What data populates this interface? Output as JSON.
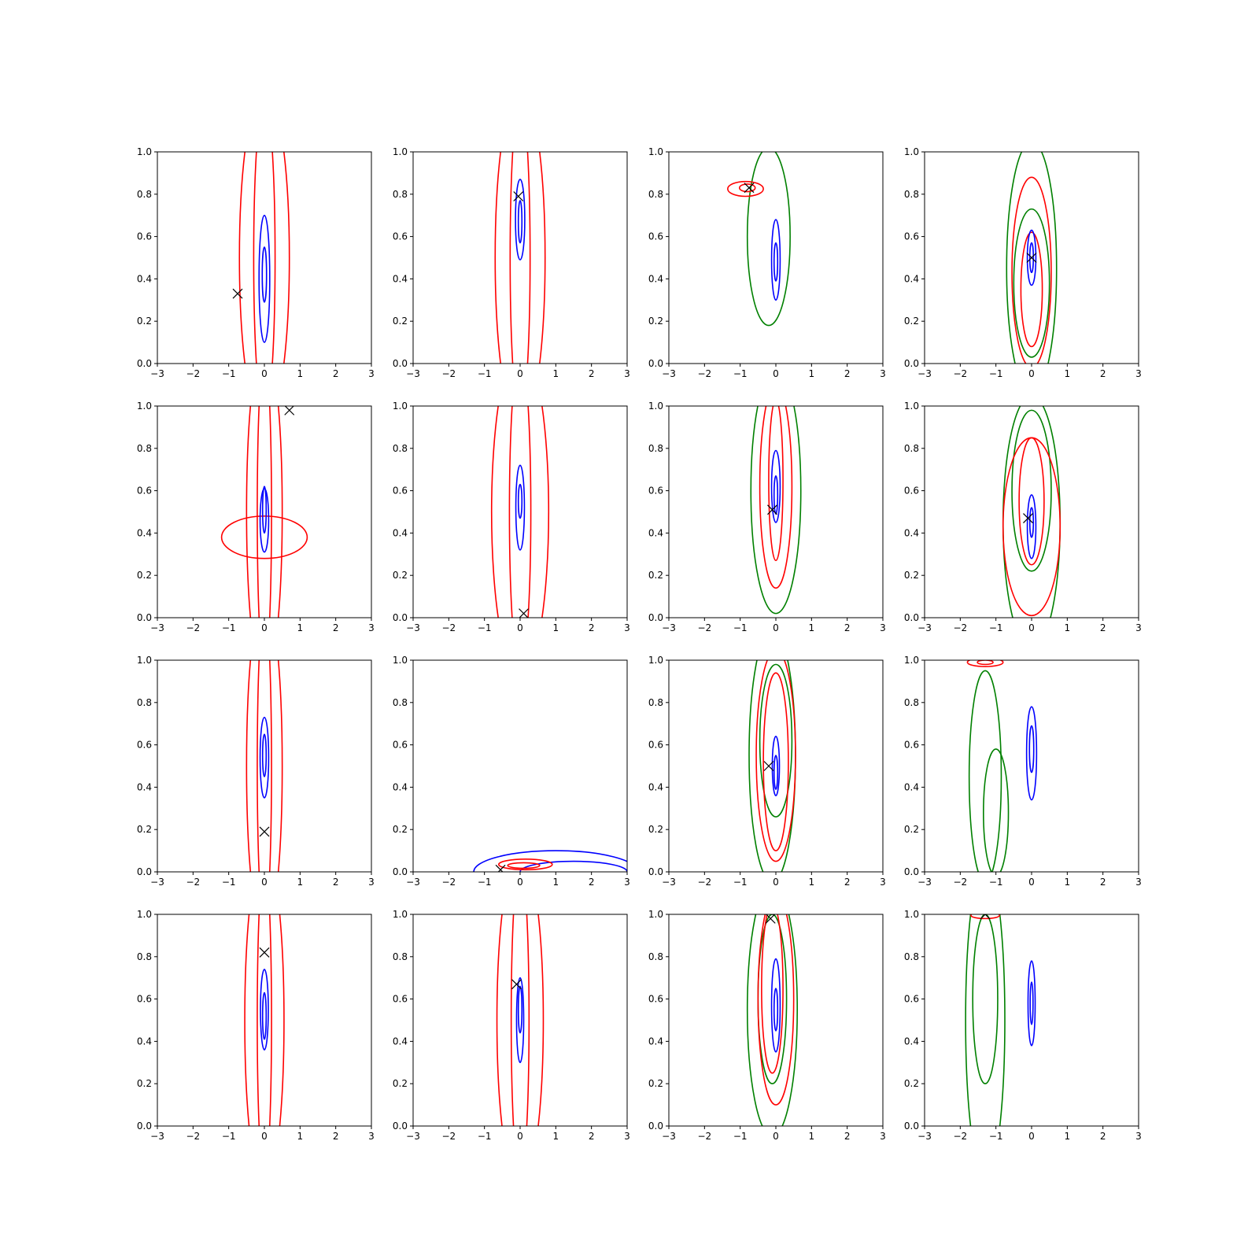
{
  "chart_data": {
    "type": "contour",
    "layout": {
      "rows": 4,
      "cols": 4
    },
    "xlim": [
      -3,
      3
    ],
    "ylim": [
      0,
      1
    ],
    "xticks": [
      -3,
      -2,
      -1,
      0,
      1,
      2,
      3
    ],
    "yticks": [
      0.0,
      0.2,
      0.4,
      0.6,
      0.8,
      1.0
    ],
    "xtick_labels": [
      "−3",
      "−2",
      "−1",
      "0",
      "1",
      "2",
      "3"
    ],
    "ytick_labels": [
      "0.0",
      "0.2",
      "0.4",
      "0.6",
      "0.8",
      "1.0"
    ],
    "grid": false,
    "legend": "none",
    "colors": {
      "red": "#ff0000",
      "blue": "#0000ff",
      "green": "#008000",
      "marker": "#000000"
    },
    "panels": [
      {
        "marker": [
          -0.75,
          0.33
        ],
        "contours": [
          {
            "color": "red",
            "cx": 0.0,
            "cy": 0.5,
            "rx": 0.7,
            "ry": 0.8
          },
          {
            "color": "red",
            "cx": 0.0,
            "cy": 0.5,
            "rx": 0.3,
            "ry": 0.75
          },
          {
            "color": "blue",
            "cx": 0.0,
            "cy": 0.4,
            "rx": 0.15,
            "ry": 0.3
          },
          {
            "color": "blue",
            "cx": 0.0,
            "cy": 0.42,
            "rx": 0.06,
            "ry": 0.13
          }
        ]
      },
      {
        "marker": [
          -0.05,
          0.79
        ],
        "contours": [
          {
            "color": "red",
            "cx": 0.0,
            "cy": 0.5,
            "rx": 0.7,
            "ry": 0.8
          },
          {
            "color": "red",
            "cx": 0.0,
            "cy": 0.5,
            "rx": 0.28,
            "ry": 0.75
          },
          {
            "color": "blue",
            "cx": 0.0,
            "cy": 0.68,
            "rx": 0.13,
            "ry": 0.19
          },
          {
            "color": "blue",
            "cx": 0.0,
            "cy": 0.67,
            "rx": 0.05,
            "ry": 0.1
          }
        ]
      },
      {
        "marker": [
          -0.75,
          0.83
        ],
        "contours": [
          {
            "color": "green",
            "cx": -0.2,
            "cy": 0.6,
            "rx": 0.6,
            "ry": 0.42
          },
          {
            "color": "red",
            "cx": -0.85,
            "cy": 0.825,
            "rx": 0.5,
            "ry": 0.035
          },
          {
            "color": "red",
            "cx": -0.8,
            "cy": 0.83,
            "rx": 0.22,
            "ry": 0.018
          },
          {
            "color": "blue",
            "cx": 0.0,
            "cy": 0.49,
            "rx": 0.12,
            "ry": 0.19
          },
          {
            "color": "blue",
            "cx": 0.0,
            "cy": 0.48,
            "rx": 0.05,
            "ry": 0.09
          }
        ]
      },
      {
        "marker": [
          0.0,
          0.5
        ],
        "contours": [
          {
            "color": "green",
            "cx": 0.0,
            "cy": 0.45,
            "rx": 0.7,
            "ry": 0.6
          },
          {
            "color": "green",
            "cx": 0.0,
            "cy": 0.38,
            "rx": 0.5,
            "ry": 0.35
          },
          {
            "color": "red",
            "cx": 0.0,
            "cy": 0.43,
            "rx": 0.55,
            "ry": 0.45
          },
          {
            "color": "red",
            "cx": 0.0,
            "cy": 0.35,
            "rx": 0.3,
            "ry": 0.27
          },
          {
            "color": "blue",
            "cx": 0.0,
            "cy": 0.5,
            "rx": 0.12,
            "ry": 0.13
          },
          {
            "color": "blue",
            "cx": 0.0,
            "cy": 0.5,
            "rx": 0.05,
            "ry": 0.07
          }
        ]
      },
      {
        "marker": [
          0.7,
          0.98
        ],
        "contours": [
          {
            "color": "red",
            "cx": 0.0,
            "cy": 0.5,
            "rx": 0.5,
            "ry": 0.8
          },
          {
            "color": "red",
            "cx": 0.0,
            "cy": 0.38,
            "rx": 1.2,
            "ry": 0.1
          },
          {
            "color": "red",
            "cx": 0.0,
            "cy": 0.5,
            "rx": 0.2,
            "ry": 0.75
          },
          {
            "color": "blue",
            "cx": 0.0,
            "cy": 0.46,
            "rx": 0.12,
            "ry": 0.15
          },
          {
            "color": "blue",
            "cx": 0.0,
            "cy": 0.51,
            "rx": 0.05,
            "ry": 0.11
          }
        ]
      },
      {
        "marker": [
          0.1,
          0.02
        ],
        "contours": [
          {
            "color": "red",
            "cx": 0.0,
            "cy": 0.5,
            "rx": 0.8,
            "ry": 0.78
          },
          {
            "color": "red",
            "cx": 0.0,
            "cy": 0.5,
            "rx": 0.3,
            "ry": 0.75
          },
          {
            "color": "blue",
            "cx": 0.0,
            "cy": 0.52,
            "rx": 0.12,
            "ry": 0.2
          },
          {
            "color": "blue",
            "cx": 0.0,
            "cy": 0.55,
            "rx": 0.05,
            "ry": 0.08
          }
        ]
      },
      {
        "marker": [
          -0.1,
          0.51
        ],
        "contours": [
          {
            "color": "green",
            "cx": 0.0,
            "cy": 0.6,
            "rx": 0.7,
            "ry": 0.58
          },
          {
            "color": "red",
            "cx": 0.0,
            "cy": 0.62,
            "rx": 0.45,
            "ry": 0.48
          },
          {
            "color": "red",
            "cx": 0.0,
            "cy": 0.65,
            "rx": 0.2,
            "ry": 0.38
          },
          {
            "color": "blue",
            "cx": 0.0,
            "cy": 0.62,
            "rx": 0.12,
            "ry": 0.17
          },
          {
            "color": "blue",
            "cx": 0.0,
            "cy": 0.58,
            "rx": 0.05,
            "ry": 0.09
          }
        ]
      },
      {
        "marker": [
          -0.1,
          0.47
        ],
        "contours": [
          {
            "color": "green",
            "cx": 0.0,
            "cy": 0.45,
            "rx": 0.8,
            "ry": 0.6
          },
          {
            "color": "green",
            "cx": 0.0,
            "cy": 0.6,
            "rx": 0.55,
            "ry": 0.38
          },
          {
            "color": "red",
            "cx": 0.0,
            "cy": 0.43,
            "rx": 0.8,
            "ry": 0.42
          },
          {
            "color": "red",
            "cx": 0.0,
            "cy": 0.55,
            "rx": 0.35,
            "ry": 0.3
          },
          {
            "color": "blue",
            "cx": 0.0,
            "cy": 0.43,
            "rx": 0.12,
            "ry": 0.15
          },
          {
            "color": "blue",
            "cx": 0.0,
            "cy": 0.45,
            "rx": 0.05,
            "ry": 0.07
          }
        ]
      },
      {
        "marker": [
          0.0,
          0.19
        ],
        "contours": [
          {
            "color": "red",
            "cx": 0.0,
            "cy": 0.5,
            "rx": 0.5,
            "ry": 0.8
          },
          {
            "color": "red",
            "cx": 0.0,
            "cy": 0.5,
            "rx": 0.2,
            "ry": 0.75
          },
          {
            "color": "blue",
            "cx": 0.0,
            "cy": 0.54,
            "rx": 0.12,
            "ry": 0.19
          },
          {
            "color": "blue",
            "cx": 0.0,
            "cy": 0.55,
            "rx": 0.05,
            "ry": 0.1
          }
        ]
      },
      {
        "marker": [
          -0.55,
          0.01
        ],
        "contours": [
          {
            "color": "blue",
            "cx": 1.0,
            "cy": 0.0,
            "rx": 2.3,
            "ry": 0.1
          },
          {
            "color": "blue",
            "cx": 1.5,
            "cy": 0.0,
            "rx": 1.5,
            "ry": 0.05
          },
          {
            "color": "red",
            "cx": 0.15,
            "cy": 0.035,
            "rx": 0.75,
            "ry": 0.025
          },
          {
            "color": "red",
            "cx": 0.1,
            "cy": 0.03,
            "rx": 0.45,
            "ry": 0.013
          }
        ]
      },
      {
        "marker": [
          -0.2,
          0.5
        ],
        "contours": [
          {
            "color": "green",
            "cx": -0.1,
            "cy": 0.55,
            "rx": 0.65,
            "ry": 0.6
          },
          {
            "color": "green",
            "cx": 0.0,
            "cy": 0.62,
            "rx": 0.45,
            "ry": 0.36
          },
          {
            "color": "red",
            "cx": 0.0,
            "cy": 0.55,
            "rx": 0.55,
            "ry": 0.5
          },
          {
            "color": "red",
            "cx": 0.0,
            "cy": 0.52,
            "rx": 0.35,
            "ry": 0.42
          },
          {
            "color": "blue",
            "cx": 0.0,
            "cy": 0.5,
            "rx": 0.1,
            "ry": 0.14
          },
          {
            "color": "blue",
            "cx": 0.0,
            "cy": 0.47,
            "rx": 0.05,
            "ry": 0.08
          }
        ]
      },
      {
        "marker": null,
        "contours": [
          {
            "color": "green",
            "cx": -1.3,
            "cy": 0.45,
            "rx": 0.45,
            "ry": 0.5
          },
          {
            "color": "green",
            "cx": -1.0,
            "cy": 0.28,
            "rx": 0.35,
            "ry": 0.3
          },
          {
            "color": "red",
            "cx": -1.3,
            "cy": 0.99,
            "rx": 0.5,
            "ry": 0.02
          },
          {
            "color": "red",
            "cx": -1.3,
            "cy": 0.99,
            "rx": 0.22,
            "ry": 0.01
          },
          {
            "color": "blue",
            "cx": 0.0,
            "cy": 0.56,
            "rx": 0.14,
            "ry": 0.22
          },
          {
            "color": "blue",
            "cx": 0.0,
            "cy": 0.58,
            "rx": 0.06,
            "ry": 0.11
          }
        ]
      },
      {
        "marker": [
          0.0,
          0.82
        ],
        "contours": [
          {
            "color": "red",
            "cx": 0.0,
            "cy": 0.5,
            "rx": 0.55,
            "ry": 0.8
          },
          {
            "color": "red",
            "cx": 0.0,
            "cy": 0.5,
            "rx": 0.2,
            "ry": 0.75
          },
          {
            "color": "blue",
            "cx": 0.0,
            "cy": 0.55,
            "rx": 0.11,
            "ry": 0.19
          },
          {
            "color": "blue",
            "cx": 0.0,
            "cy": 0.52,
            "rx": 0.05,
            "ry": 0.11
          }
        ]
      },
      {
        "marker": [
          -0.1,
          0.67
        ],
        "contours": [
          {
            "color": "red",
            "cx": 0.0,
            "cy": 0.5,
            "rx": 0.65,
            "ry": 0.8
          },
          {
            "color": "red",
            "cx": 0.0,
            "cy": 0.5,
            "rx": 0.25,
            "ry": 0.75
          },
          {
            "color": "blue",
            "cx": 0.0,
            "cy": 0.5,
            "rx": 0.1,
            "ry": 0.2
          },
          {
            "color": "blue",
            "cx": 0.0,
            "cy": 0.55,
            "rx": 0.05,
            "ry": 0.11
          }
        ]
      },
      {
        "marker": [
          -0.15,
          0.98
        ],
        "contours": [
          {
            "color": "green",
            "cx": -0.1,
            "cy": 0.55,
            "rx": 0.7,
            "ry": 0.6
          },
          {
            "color": "green",
            "cx": -0.1,
            "cy": 0.6,
            "rx": 0.4,
            "ry": 0.4
          },
          {
            "color": "red",
            "cx": 0.0,
            "cy": 0.6,
            "rx": 0.5,
            "ry": 0.5
          },
          {
            "color": "red",
            "cx": -0.1,
            "cy": 0.65,
            "rx": 0.3,
            "ry": 0.4
          },
          {
            "color": "blue",
            "cx": 0.0,
            "cy": 0.57,
            "rx": 0.12,
            "ry": 0.22
          },
          {
            "color": "blue",
            "cx": 0.0,
            "cy": 0.55,
            "rx": 0.05,
            "ry": 0.1
          }
        ]
      },
      {
        "marker": [
          -1.3,
          1.0
        ],
        "contours": [
          {
            "color": "green",
            "cx": -1.3,
            "cy": 0.5,
            "rx": 0.55,
            "ry": 0.75
          },
          {
            "color": "green",
            "cx": -1.3,
            "cy": 0.6,
            "rx": 0.35,
            "ry": 0.4
          },
          {
            "color": "red",
            "cx": -1.3,
            "cy": 0.995,
            "rx": 0.4,
            "ry": 0.015
          },
          {
            "color": "blue",
            "cx": 0.0,
            "cy": 0.58,
            "rx": 0.1,
            "ry": 0.2
          },
          {
            "color": "blue",
            "cx": 0.0,
            "cy": 0.58,
            "rx": 0.04,
            "ry": 0.1
          }
        ]
      }
    ]
  }
}
